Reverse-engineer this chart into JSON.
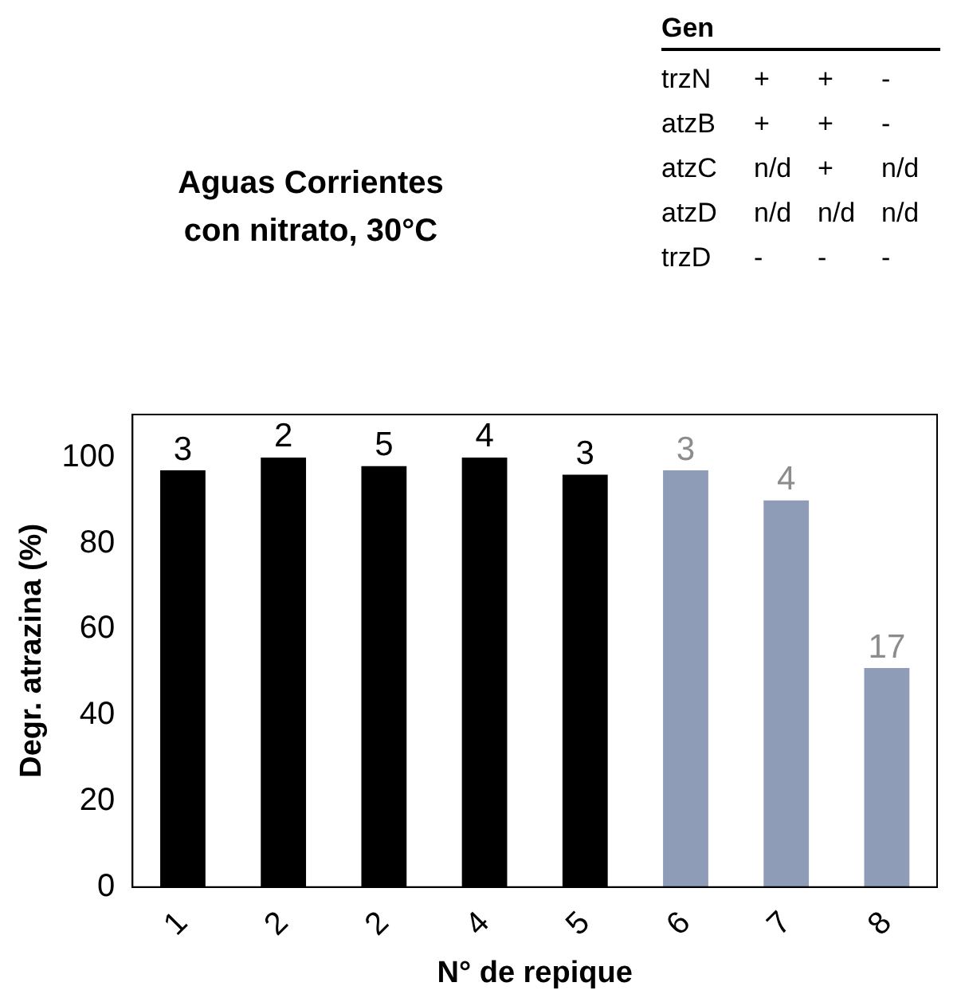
{
  "chart_data": {
    "type": "bar",
    "title": "Aguas Corrientes\ncon nitrato, 30°C",
    "xlabel": "N° de repique",
    "ylabel": "Degr. atrazina (%)",
    "categories": [
      "1",
      "2",
      "2",
      "4",
      "5",
      "6",
      "7",
      "8"
    ],
    "values": [
      97,
      100,
      98,
      100,
      96,
      97,
      90,
      51
    ],
    "colors": [
      "#000000",
      "#000000",
      "#000000",
      "#000000",
      "#000000",
      "#8e9cb8",
      "#8e9cb8",
      "#8e9cb8"
    ],
    "ylim": [
      0,
      110
    ],
    "yticks": [
      0,
      20,
      40,
      60,
      80,
      100
    ],
    "grid": false,
    "legend": false,
    "annotations": [
      "Gen",
      "trzN + + -",
      "atzB + + -",
      "atzC n/d + n/d",
      "atzD n/d n/d n/d",
      "trzD - - -",
      {
        "text": "3",
        "x": "1",
        "y": 97
      },
      {
        "text": "2",
        "x": "2",
        "y": 100
      },
      {
        "text": "5",
        "y": 98
      },
      {
        "text": "4",
        "x": "4",
        "y": 100
      },
      {
        "text": "3",
        "x": "5",
        "y": 96
      },
      {
        "text": "3",
        "x": "6",
        "y": 97
      },
      {
        "text": "4",
        "x": "7",
        "y": 90
      },
      {
        "text": "17",
        "x": "8",
        "y": 51
      }
    ]
  }
}
